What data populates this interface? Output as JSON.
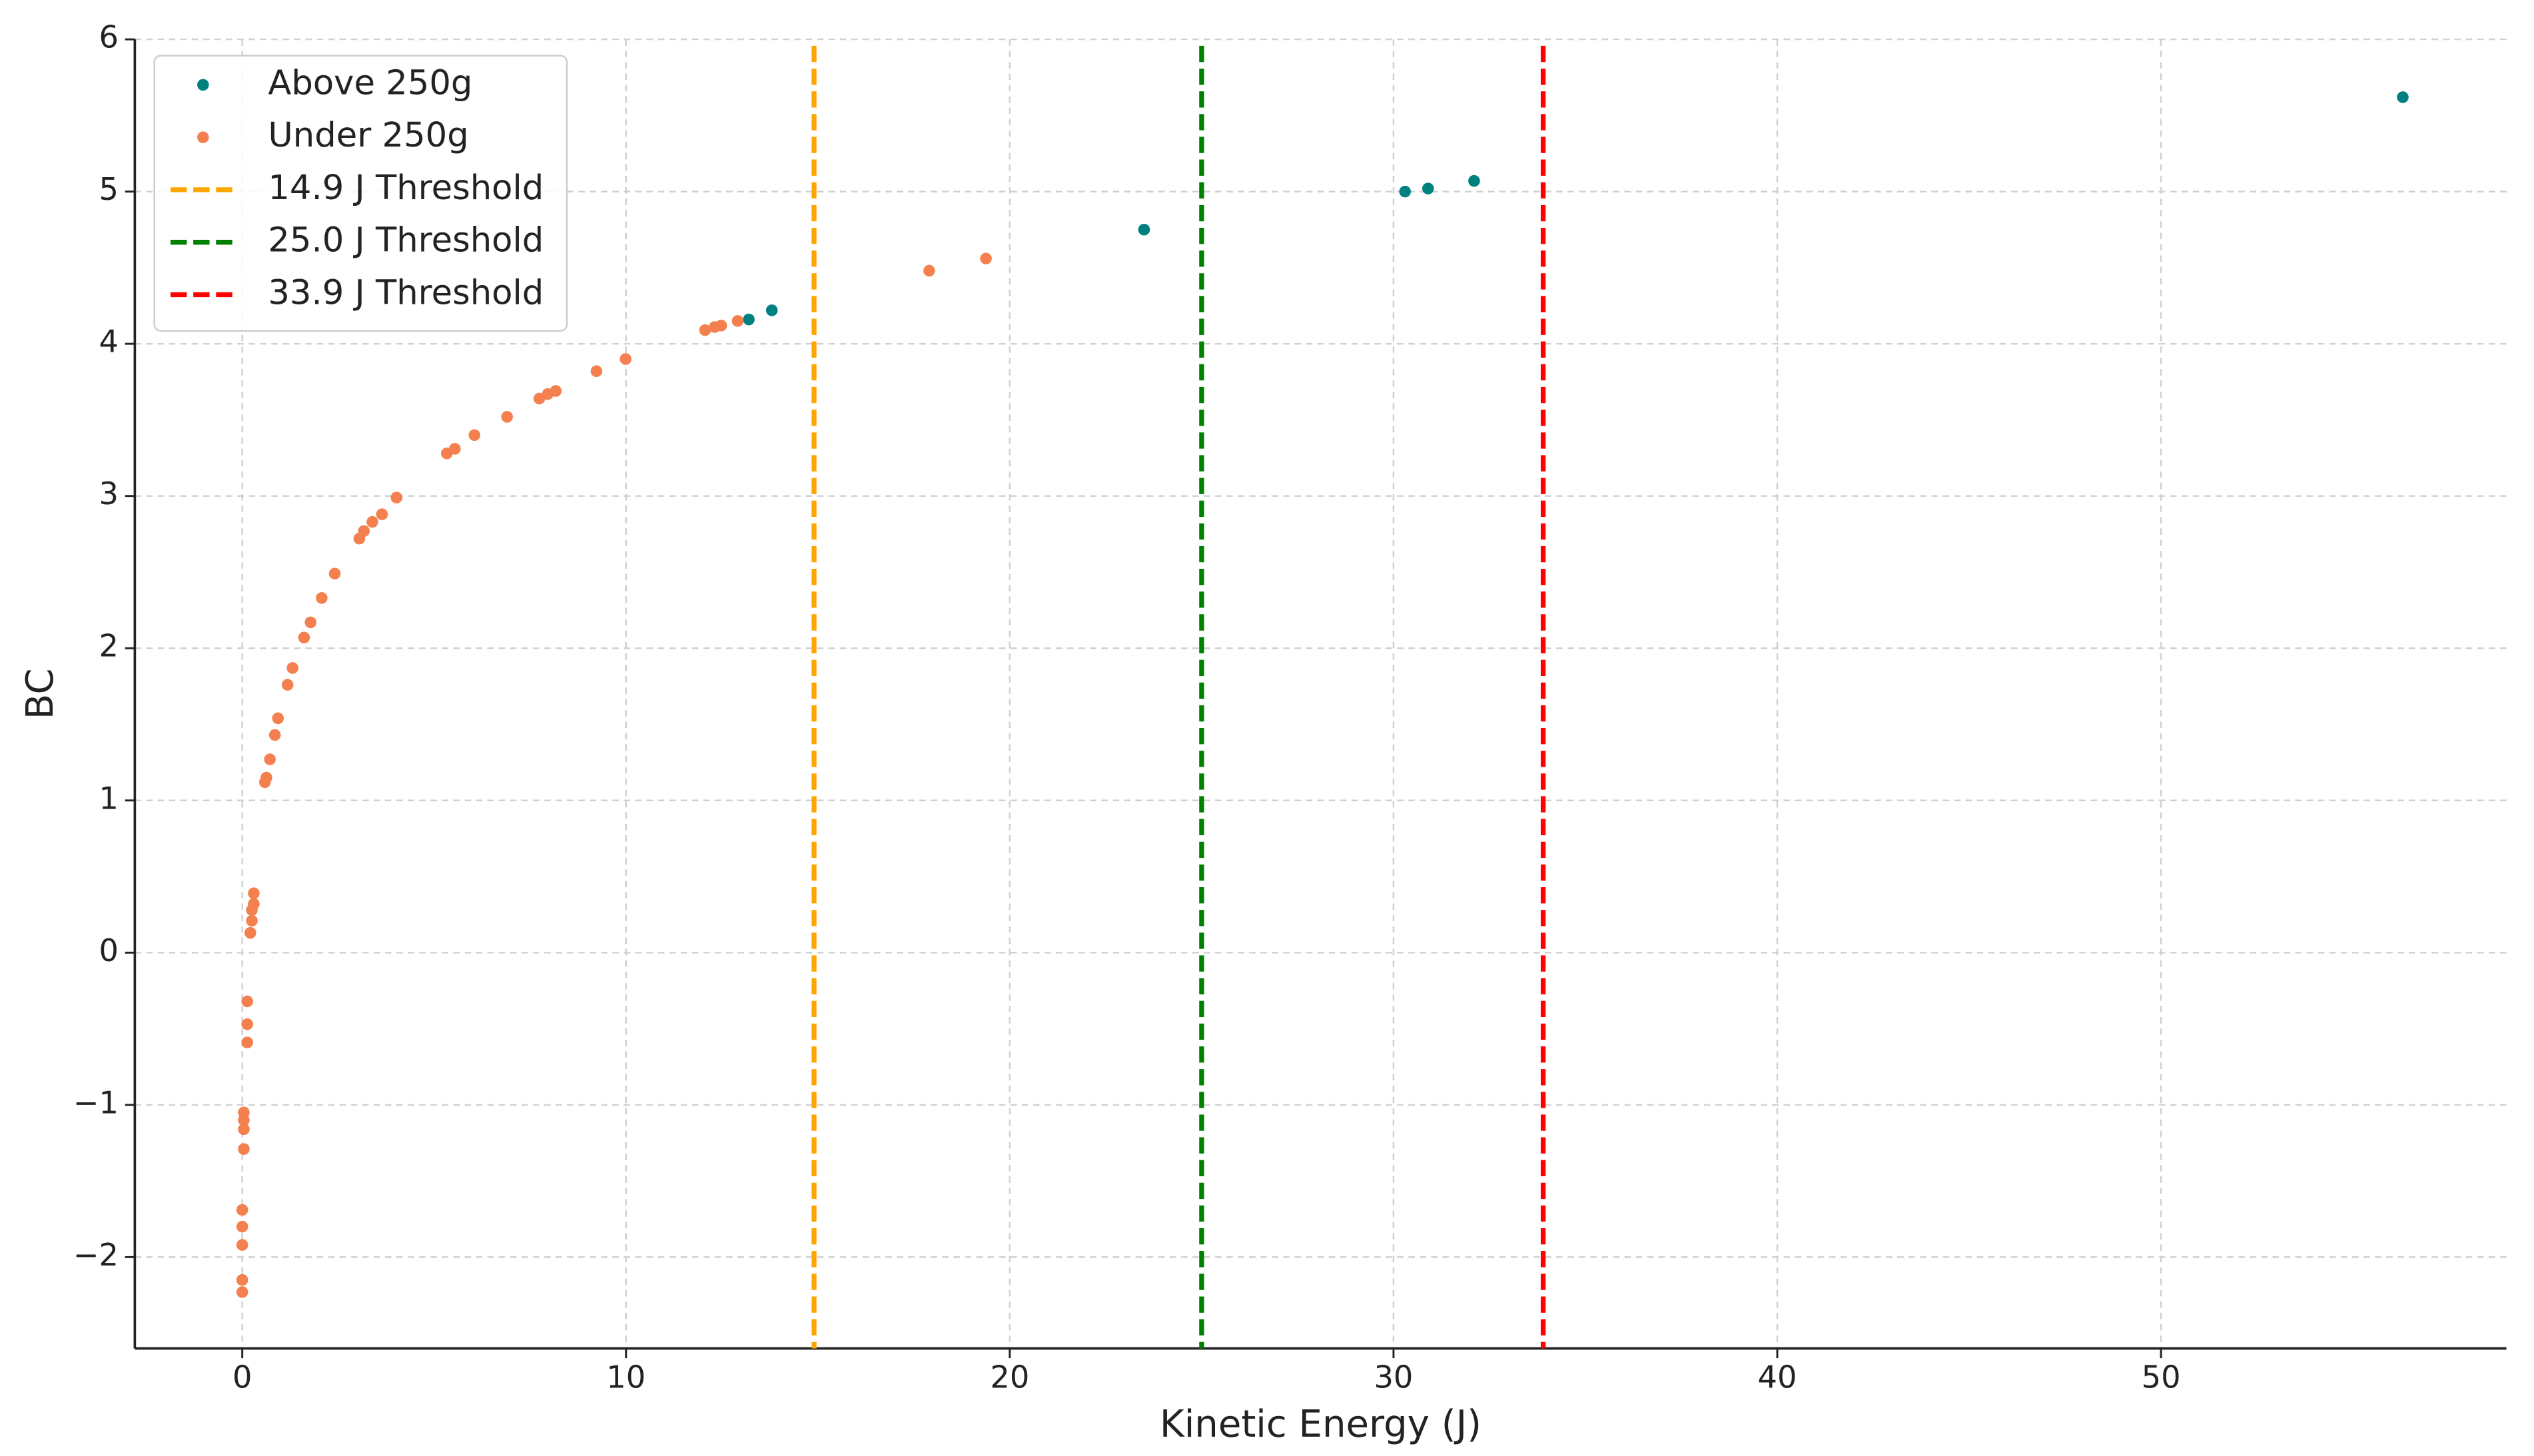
{
  "chart_data": {
    "type": "scatter",
    "xlabel": "Kinetic Energy (J)",
    "ylabel": "BC",
    "xlim": [
      -2.8,
      59
    ],
    "ylim": [
      -2.6,
      6
    ],
    "xticks": [
      0,
      10,
      20,
      30,
      40,
      50
    ],
    "yticks": [
      {
        "value": -2,
        "label": "−2"
      },
      {
        "value": -1,
        "label": "−1"
      },
      0,
      1,
      2,
      3,
      4,
      5,
      6
    ],
    "grid": true,
    "legend": "upper left",
    "series": [
      {
        "name": "Above 250g",
        "color": "#00807f",
        "x": [
          13.2,
          13.8,
          23.5,
          30.3,
          30.9,
          32.1,
          56.3
        ],
        "values": [
          4.16,
          4.22,
          4.75,
          5.0,
          5.02,
          5.07,
          5.62
        ]
      },
      {
        "name": "Under 250g",
        "color": "#f4804f",
        "x": [
          0.0,
          0.0,
          0.0,
          0.0,
          0.0,
          0.04,
          0.04,
          0.04,
          0.04,
          0.13,
          0.13,
          0.13,
          0.21,
          0.25,
          0.25,
          0.3,
          0.3,
          0.59,
          0.63,
          0.72,
          0.85,
          0.93,
          1.18,
          1.31,
          1.61,
          1.78,
          2.07,
          2.41,
          3.05,
          3.17,
          3.39,
          3.64,
          4.02,
          5.33,
          5.54,
          6.05,
          6.9,
          7.74,
          7.96,
          8.17,
          9.23,
          9.99,
          12.06,
          12.31,
          12.48,
          12.91,
          17.9,
          19.38
        ],
        "values": [
          -2.23,
          -2.15,
          -1.92,
          -1.8,
          -1.69,
          -1.29,
          -1.16,
          -1.1,
          -1.05,
          -0.59,
          -0.47,
          -0.32,
          0.13,
          0.21,
          0.28,
          0.32,
          0.39,
          1.12,
          1.15,
          1.27,
          1.43,
          1.54,
          1.76,
          1.87,
          2.07,
          2.17,
          2.33,
          2.49,
          2.72,
          2.77,
          2.83,
          2.88,
          2.99,
          3.28,
          3.31,
          3.4,
          3.52,
          3.64,
          3.67,
          3.69,
          3.82,
          3.9,
          4.09,
          4.11,
          4.12,
          4.15,
          4.48,
          4.56
        ]
      }
    ],
    "thresholds": [
      {
        "name": "14.9 J Threshold",
        "value": 14.9,
        "color": "#ffa500"
      },
      {
        "name": "25.0 J Threshold",
        "value": 25.0,
        "color": "#008000"
      },
      {
        "name": "33.9 J Threshold",
        "value": 33.9,
        "color": "#ff0000"
      }
    ]
  }
}
